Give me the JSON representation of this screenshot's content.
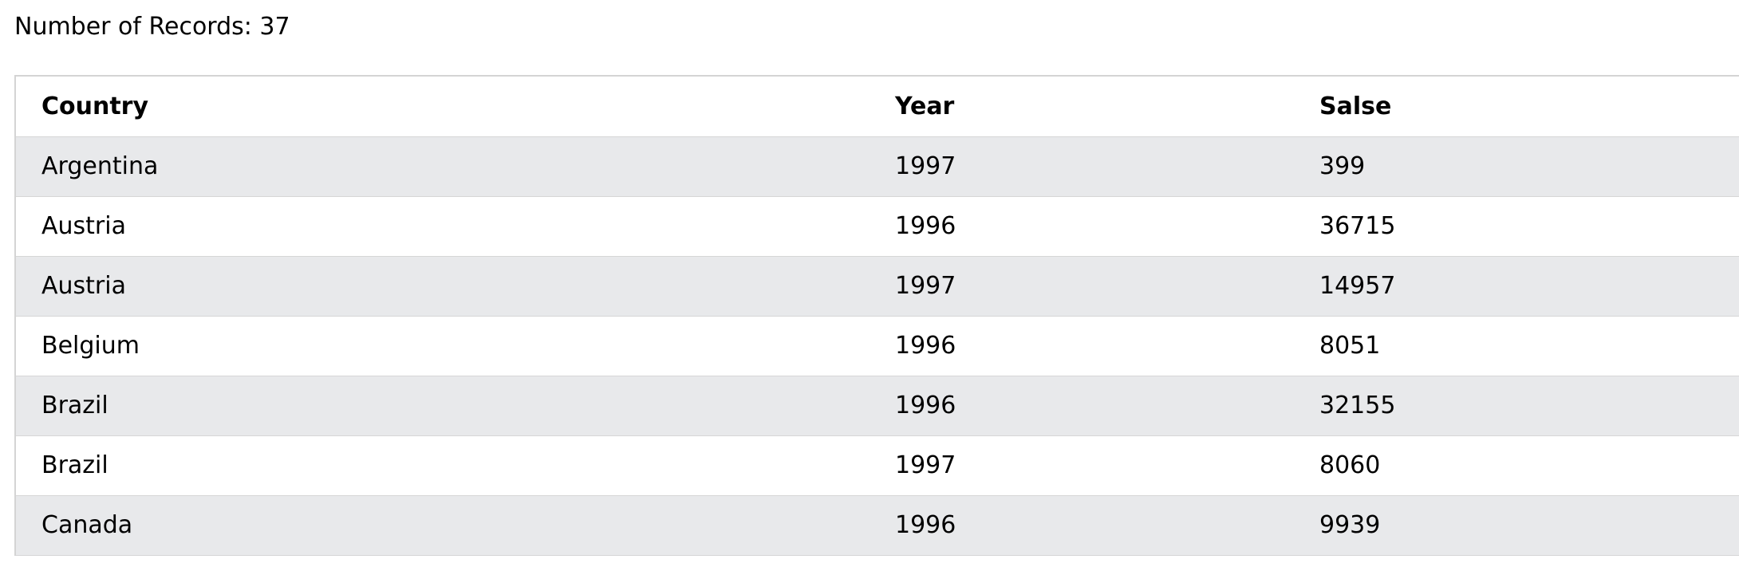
{
  "records": {
    "label": "Number of Records: 37"
  },
  "table": {
    "headers": [
      "Country",
      "Year",
      "Salse"
    ],
    "rows": [
      [
        "Argentina",
        "1997",
        "399"
      ],
      [
        "Austria",
        "1996",
        "36715"
      ],
      [
        "Austria",
        "1997",
        "14957"
      ],
      [
        "Belgium",
        "1996",
        "8051"
      ],
      [
        "Brazil",
        "1996",
        "32155"
      ],
      [
        "Brazil",
        "1997",
        "8060"
      ],
      [
        "Canada",
        "1996",
        "9939"
      ]
    ]
  },
  "colors": {
    "stripe": "#e8e9eb",
    "border": "#d6d6d6"
  }
}
